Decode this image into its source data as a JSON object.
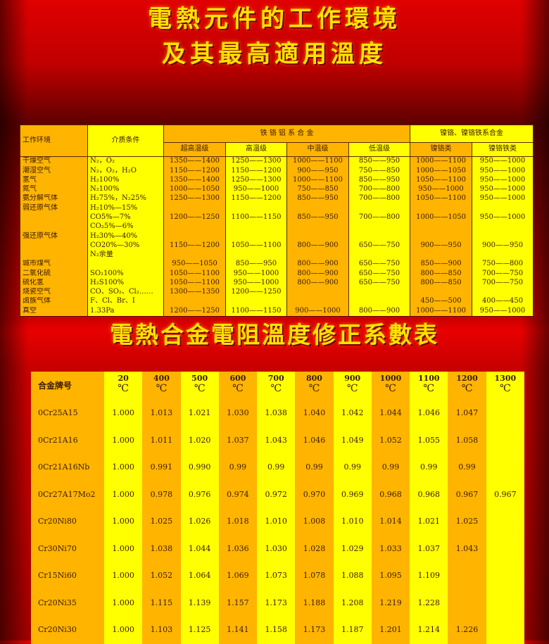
{
  "titles": {
    "line1": "電熱元件的工作環境",
    "line2": "及其最高適用溫度",
    "table2": "電熱合金電阻溫度修正系數表"
  },
  "colors": {
    "orange": "#ffb400",
    "yellow": "#ffff00",
    "title": "#ffe400",
    "background": "#d00000"
  },
  "env_table": {
    "h_env": "工作环境",
    "h_medium": "介质条件",
    "h_group1": "铁 铬 铝 系 合 金",
    "h_group2": "镍铬、镍铬铁系合金",
    "sub": [
      "超高温级",
      "高温级",
      "中温级",
      "低温级",
      "镍铬类",
      "镍铬铁类"
    ],
    "rows": [
      [
        "干燥空气",
        "N₂，O₂",
        "1350——1400",
        "1250——1300",
        "1000——1100",
        "850——950",
        "1000——1100",
        "950——1000"
      ],
      [
        "潮湿空气",
        "N₂，O₂，H₂O",
        "1150——1200",
        "1150——1200",
        "900——950",
        "750——850",
        "1000——1050",
        "950——1000"
      ],
      [
        "氢气",
        "H₂100%",
        "1350——1400",
        "1250——1300",
        "1000——1100",
        "850——950",
        "1050——1100",
        "950——1000"
      ],
      [
        "氮气",
        "N₂100%",
        "1000——1050",
        "950——1000",
        "750——850",
        "700——800",
        "950——1000",
        "950——1000"
      ],
      [
        "氨分解气体",
        "H₂75%，N₂25%",
        "1250——1300",
        "1150——1200",
        "850——950",
        "700——800",
        "1050——1100",
        "950——1000"
      ],
      [
        "弱还原气体",
        "H₂10%—15%",
        "",
        "",
        "",
        "",
        "",
        ""
      ],
      [
        "",
        "CO5%—7%",
        "1200——1250",
        "1100——1150",
        "850——950",
        "700——800",
        "1000——1050",
        "950——1000"
      ],
      [
        "",
        "CO₂5%—6%",
        "",
        "",
        "",
        "",
        "",
        ""
      ],
      [
        "强还原气体",
        "H₂30%—40%",
        "",
        "",
        "",
        "",
        "",
        ""
      ],
      [
        "",
        "CO20%—30%",
        "1150——1200",
        "1050——1100",
        "800——900",
        "650——750",
        "900——950",
        "900——950"
      ],
      [
        "",
        "N₂余量",
        "",
        "",
        "",
        "",
        "",
        ""
      ],
      [
        "城市煤气",
        "",
        "950——1050",
        "850——950",
        "800——900",
        "650——750",
        "850——900",
        "750——800"
      ],
      [
        "二氧化硫",
        "SO₂100%",
        "1050——1100",
        "950——1000",
        "800——900",
        "650——750",
        "800——850",
        "700——750"
      ],
      [
        "硫化氢",
        "H₂S100%",
        "1050——1100",
        "950——1000",
        "800——900",
        "650——750",
        "800——850",
        "700——750"
      ],
      [
        "烧瓷空气",
        "CO、SO₂、Cl₂……",
        "1300——1350",
        "1200——1250",
        "",
        "",
        "",
        ""
      ],
      [
        "卤族气体",
        "F、Cl、Br、I",
        "",
        "",
        "",
        "",
        "450——500",
        "400——450"
      ],
      [
        "真空",
        "1.33Pa",
        "1200——1250",
        "1100——1150",
        "900——1000",
        "800——900",
        "1000——1100",
        "950——1000"
      ]
    ]
  },
  "coef_table": {
    "h_alloy": "合金牌号",
    "unit": "℃",
    "temps": [
      "20",
      "400",
      "500",
      "600",
      "700",
      "800",
      "900",
      "1000",
      "1100",
      "1200",
      "1300"
    ],
    "rows": [
      {
        "alloy": "0Cr25A15",
        "values": [
          "1.000",
          "1.013",
          "1.021",
          "1.030",
          "1.038",
          "1.040",
          "1.042",
          "1.044",
          "1.046",
          "1.047",
          ""
        ]
      },
      {
        "alloy": "0Cr21A16",
        "values": [
          "1.000",
          "1.011",
          "1.020",
          "1.037",
          "1.043",
          "1.046",
          "1.049",
          "1.052",
          "1.055",
          "1.058",
          ""
        ]
      },
      {
        "alloy": "0Cr21A16Nb",
        "values": [
          "1.000",
          "0.991",
          "0.990",
          "0.99",
          "0.99",
          "0.99",
          "0.99",
          "0.99",
          "0.99",
          "0.99",
          ""
        ]
      },
      {
        "alloy": "0Cr27A17Mo2",
        "values": [
          "1.000",
          "0.978",
          "0.976",
          "0.974",
          "0.972",
          "0.970",
          "0.969",
          "0.968",
          "0.968",
          "0.967",
          "0.967"
        ]
      },
      {
        "alloy": "Cr20Ni80",
        "values": [
          "1.000",
          "1.025",
          "1.026",
          "1.018",
          "1.010",
          "1.008",
          "1.010",
          "1.014",
          "1.021",
          "1.025",
          ""
        ]
      },
      {
        "alloy": "Cr30Ni70",
        "values": [
          "1.000",
          "1.038",
          "1.044",
          "1.036",
          "1.030",
          "1.028",
          "1.029",
          "1.033",
          "1.037",
          "1.043",
          ""
        ]
      },
      {
        "alloy": "Cr15Ni60",
        "values": [
          "1.000",
          "1.052",
          "1.064",
          "1.069",
          "1.073",
          "1.078",
          "1.088",
          "1.095",
          "1.109",
          "",
          ""
        ]
      },
      {
        "alloy": "Cr20Ni35",
        "values": [
          "1.000",
          "1.115",
          "1.139",
          "1.157",
          "1.173",
          "1.188",
          "1.208",
          "1.219",
          "1.228",
          "",
          ""
        ]
      },
      {
        "alloy": "Cr20Ni30",
        "values": [
          "1.000",
          "1.103",
          "1.125",
          "1.141",
          "1.158",
          "1.173",
          "1.187",
          "1.201",
          "1.214",
          "1.226",
          ""
        ]
      }
    ]
  }
}
